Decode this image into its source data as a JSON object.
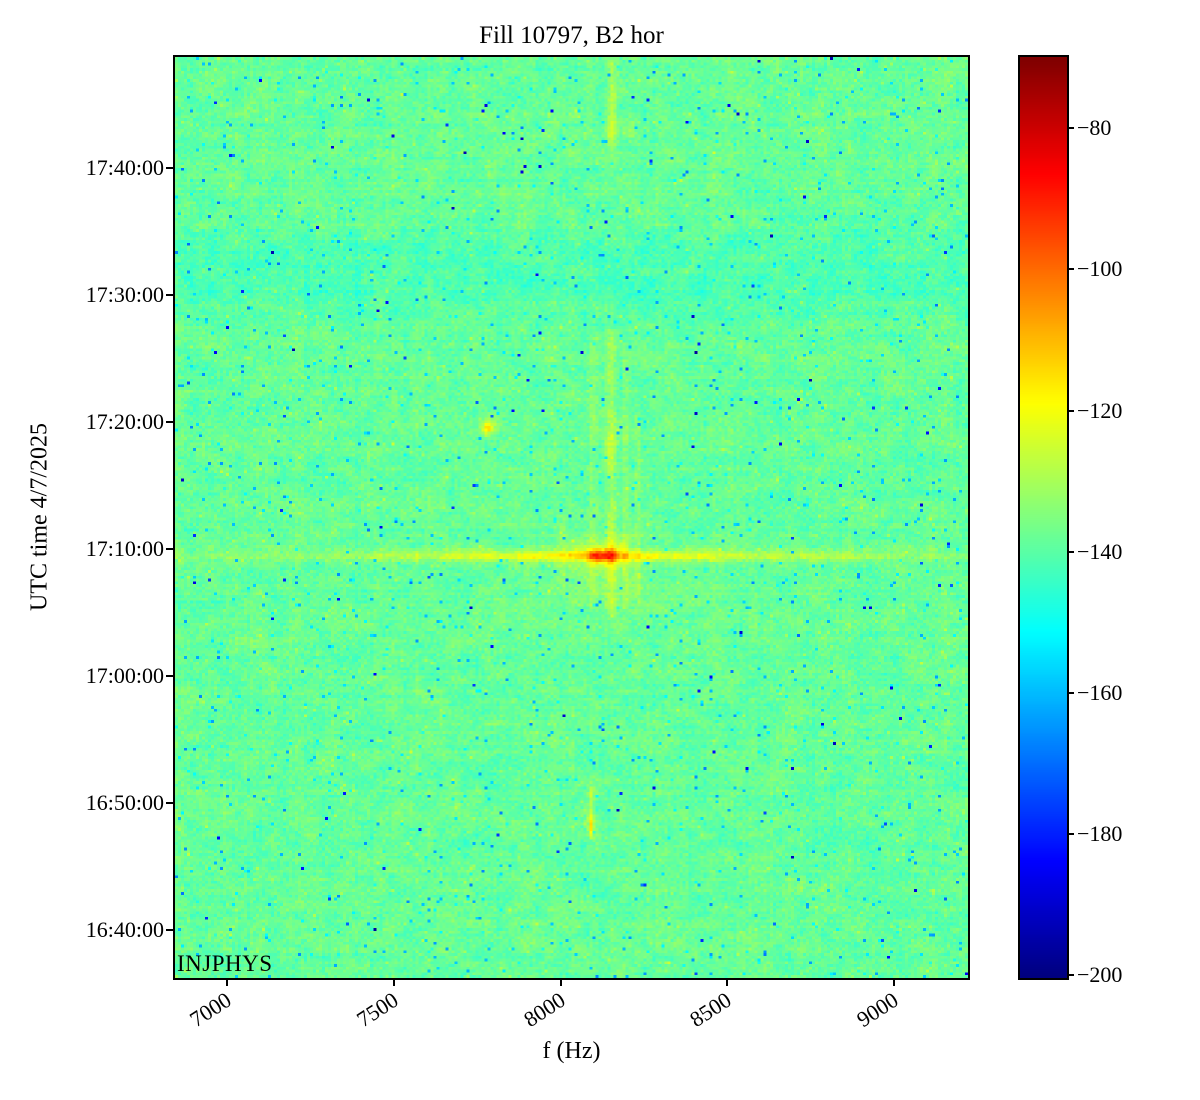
{
  "watermark": "INJPHYS",
  "chart_data": {
    "type": "heatmap",
    "title": "Fill 10797, B2 hor",
    "xlabel": "f (Hz)",
    "ylabel": "UTC time 4/7/2025",
    "colormap": "jet",
    "grid": false,
    "x_range_hz": [
      6843,
      9223
    ],
    "y_time_range": [
      "16:36:15",
      "17:48:45"
    ],
    "x_ticks": [
      {
        "value": 7000,
        "label": "7000"
      },
      {
        "value": 7500,
        "label": "7500"
      },
      {
        "value": 8000,
        "label": "8000"
      },
      {
        "value": 8500,
        "label": "8500"
      },
      {
        "value": 9000,
        "label": "9000"
      }
    ],
    "y_ticks": [
      {
        "time": "17:40:00",
        "label": "17:40:00"
      },
      {
        "time": "17:30:00",
        "label": "17:30:00"
      },
      {
        "time": "17:20:00",
        "label": "17:20:00"
      },
      {
        "time": "17:10:00",
        "label": "17:10:00"
      },
      {
        "time": "17:00:00",
        "label": "17:00:00"
      },
      {
        "time": "16:50:00",
        "label": "16:50:00"
      },
      {
        "time": "16:40:00",
        "label": "16:40:00"
      }
    ],
    "colorbar": {
      "vmin": -200.4,
      "vmax": -69.9,
      "ticks": [
        {
          "value": -80,
          "label": "−80"
        },
        {
          "value": -100,
          "label": "−100"
        },
        {
          "value": -120,
          "label": "−120"
        },
        {
          "value": -140,
          "label": "−140"
        },
        {
          "value": -160,
          "label": "−160"
        },
        {
          "value": -180,
          "label": "−180"
        },
        {
          "value": -200,
          "label": "−200"
        }
      ]
    },
    "grid_bins": {
      "cols": 264,
      "rows": 332
    },
    "background_noise": {
      "mean_db": -138.5,
      "fine_noise_db": 4.8,
      "coarse_noise_db": 3.0,
      "speckle_fraction": 0.02,
      "speckle_depth_db": [
        8,
        28
      ],
      "deep_speckle_fraction": 0.002,
      "deep_speckle_depth_db": [
        30,
        55
      ]
    },
    "bands": [
      {
        "name": "cool-band",
        "t_start": "17:27:00",
        "t_end": "17:36:30",
        "delta_db": -3.2
      }
    ],
    "features": [
      {
        "name": "burst-hline",
        "type": "hline",
        "time": "17:09:30",
        "t_sigma_min": 0.45,
        "f_center": 8120,
        "f_sigma": 700,
        "amp_db": 15,
        "amp_floor_db": 2.5
      },
      {
        "name": "burst-core",
        "type": "blob",
        "f": 8122,
        "time": "17:09:30",
        "f_sigma": 42,
        "t_sigma_min": 0.55,
        "amp_db": 20
      },
      {
        "name": "burst-halo",
        "type": "blob",
        "f": 8122,
        "time": "17:09:30",
        "f_sigma": 120,
        "t_sigma_min": 1.4,
        "amp_db": 8
      },
      {
        "name": "burst-underglow",
        "type": "blob",
        "f": 8130,
        "time": "17:07:00",
        "f_sigma": 220,
        "t_sigma_min": 3.0,
        "amp_db": 3
      },
      {
        "name": "vstreak-main",
        "type": "vline",
        "f": 8152,
        "f_halfwidth": 16,
        "t_start": "17:04:30",
        "t_end": "17:27:30",
        "amp_db": 8,
        "peaks": [
          {
            "time": "17:09:30",
            "amp_db": 6,
            "sigma_min": 1.5
          },
          {
            "time": "17:18:00",
            "amp_db": 5,
            "sigma_min": 2.0
          }
        ]
      },
      {
        "name": "vstreak-left",
        "type": "vline",
        "f": 8098,
        "f_halfwidth": 12,
        "t_start": "17:05:00",
        "t_end": "17:27:00",
        "amp_db": 4,
        "peaks": []
      },
      {
        "name": "vstreak-right",
        "type": "vline",
        "f": 8196,
        "f_halfwidth": 11,
        "t_start": "17:05:00",
        "t_end": "17:26:00",
        "amp_db": 5,
        "peaks": [
          {
            "time": "17:09:30",
            "amp_db": 3,
            "sigma_min": 1.5
          }
        ]
      },
      {
        "name": "vstreak-outer",
        "type": "vline",
        "f": 8232,
        "f_halfwidth": 9,
        "t_start": "17:06:00",
        "t_end": "17:21:00",
        "amp_db": 4,
        "peaks": []
      },
      {
        "name": "vstreak-8005",
        "type": "vline",
        "f": 8006,
        "f_halfwidth": 10,
        "t_start": "17:05:30",
        "t_end": "17:13:00",
        "amp_db": 3.5,
        "peaks": []
      },
      {
        "name": "top-streak",
        "type": "vline",
        "f": 8155,
        "f_halfwidth": 14,
        "t_start": "17:41:20",
        "t_end": "17:48:45",
        "amp_db": 8,
        "peaks": [
          {
            "time": "17:45:00",
            "amp_db": 3,
            "sigma_min": 2.0
          }
        ]
      },
      {
        "name": "top-streak-left",
        "type": "vline",
        "f": 8085,
        "f_halfwidth": 9,
        "t_start": "17:42:00",
        "t_end": "17:47:00",
        "amp_db": 3,
        "peaks": []
      },
      {
        "name": "top-streak-right",
        "type": "vline",
        "f": 8213,
        "f_halfwidth": 9,
        "t_start": "17:41:30",
        "t_end": "17:45:00",
        "amp_db": 2.5,
        "peaks": []
      },
      {
        "name": "pre-injection-streak",
        "type": "vline",
        "f": 8092,
        "f_halfwidth": 8,
        "t_start": "16:47:00",
        "t_end": "16:51:30",
        "amp_db": 10,
        "peaks": [
          {
            "time": "16:48:20",
            "amp_db": 13,
            "sigma_min": 0.7
          }
        ]
      },
      {
        "name": "side-blob",
        "type": "blob",
        "f": 7780,
        "time": "17:19:30",
        "f_sigma": 25,
        "t_sigma_min": 0.8,
        "amp_db": 14
      },
      {
        "name": "side-blob-core",
        "type": "blob",
        "f": 7782,
        "time": "17:19:30",
        "f_sigma": 12,
        "t_sigma_min": 0.3,
        "amp_db": 13
      }
    ]
  }
}
